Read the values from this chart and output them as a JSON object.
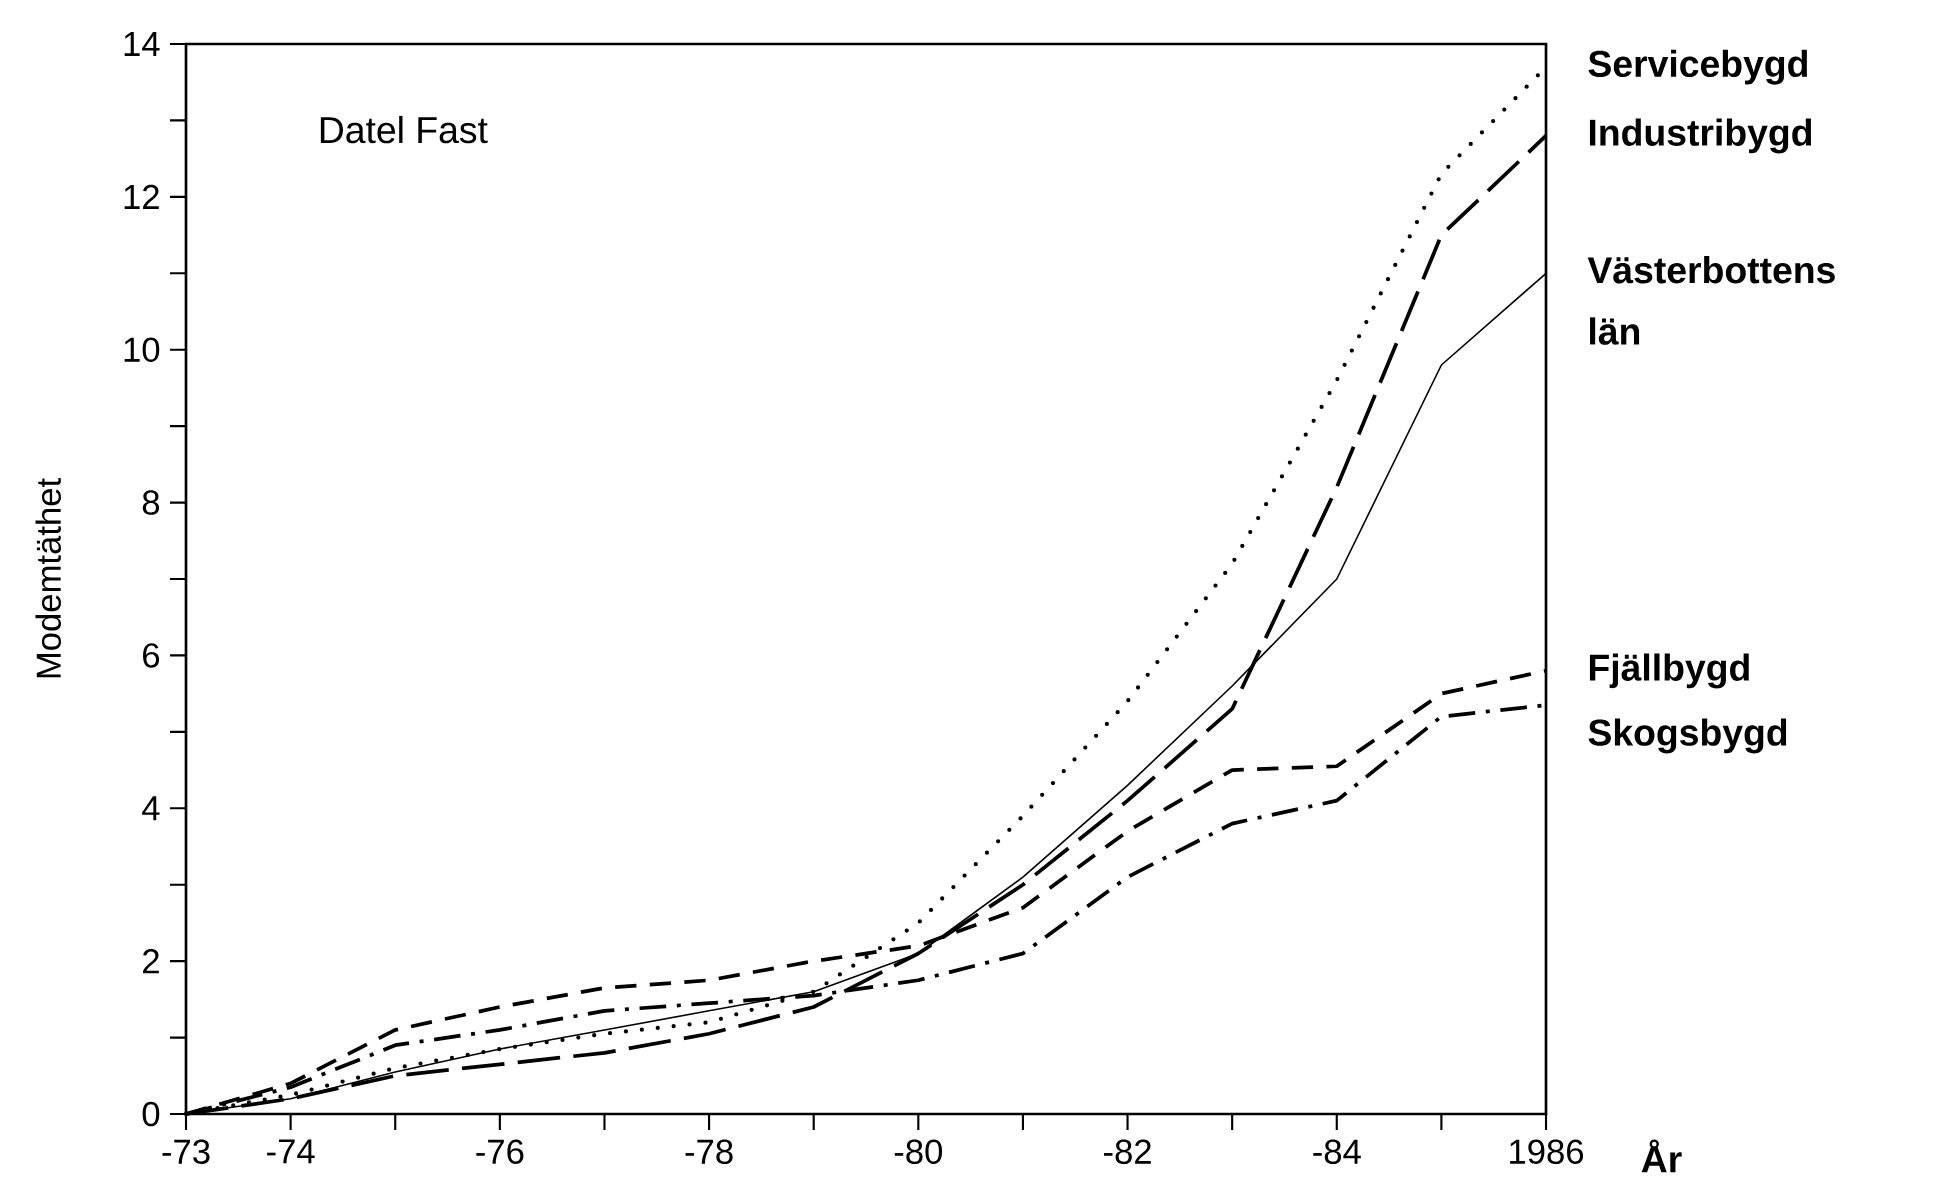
{
  "chart_data": {
    "type": "line",
    "title": "Datel Fast",
    "xlabel": "År",
    "ylabel": "Modemtäthet",
    "categories": [
      "-73",
      "-74",
      null,
      "-76",
      null,
      "-78",
      null,
      "-80",
      null,
      "-82",
      null,
      "-84",
      null,
      "1986"
    ],
    "ylim": [
      0,
      14
    ],
    "yticks": [
      0,
      {
        "value": 1,
        "label": null
      },
      2,
      {
        "value": 3,
        "label": null
      },
      4,
      {
        "value": 5,
        "label": null
      },
      6,
      {
        "value": 7,
        "label": null
      },
      8,
      {
        "value": 9,
        "label": null
      },
      10,
      {
        "value": 11,
        "label": null
      },
      12,
      {
        "value": 13,
        "label": null
      },
      14
    ],
    "grid": false,
    "marker": "none",
    "series": [
      {
        "name": "Servicebygd",
        "color": "#000000",
        "line_style": "dotted",
        "values": [
          0,
          0.25,
          0.6,
          0.85,
          1.05,
          1.2,
          1.6,
          2.5,
          3.9,
          5.4,
          7.2,
          9.6,
          12.3,
          13.7
        ]
      },
      {
        "name": "Industribygd",
        "color": "#000000",
        "line_style": "longdashed",
        "values": [
          0,
          0.2,
          0.5,
          0.65,
          0.8,
          1.05,
          1.4,
          2.1,
          3.0,
          4.1,
          5.3,
          8.2,
          11.5,
          12.8
        ]
      },
      {
        "name": "Västerbottens län",
        "color": "#000000",
        "line_style": "solid",
        "values": [
          0,
          0.2,
          0.55,
          0.85,
          1.1,
          1.35,
          1.6,
          2.1,
          3.1,
          4.3,
          5.6,
          7.0,
          9.8,
          11.0
        ]
      },
      {
        "name": "Fjällbygd",
        "color": "#000000",
        "line_style": "dashed",
        "values": [
          0,
          0.4,
          1.1,
          1.4,
          1.65,
          1.75,
          2.0,
          2.2,
          2.7,
          3.7,
          4.5,
          4.55,
          5.5,
          5.8
        ]
      },
      {
        "name": "Skogsbygd",
        "color": "#000000",
        "line_style": "dashdot",
        "values": [
          0,
          0.35,
          0.9,
          1.1,
          1.35,
          1.45,
          1.55,
          1.75,
          2.1,
          3.1,
          3.8,
          4.1,
          5.2,
          5.35
        ]
      }
    ]
  }
}
